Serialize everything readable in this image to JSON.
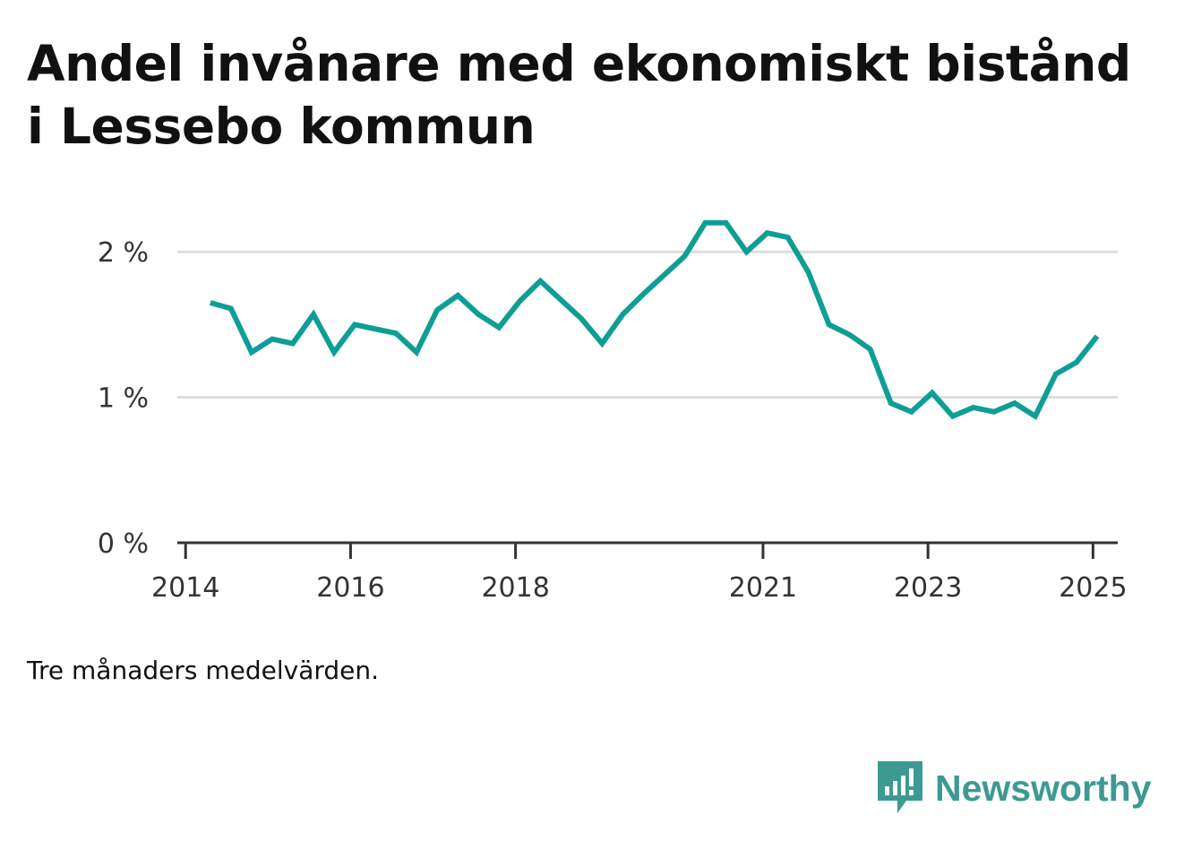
{
  "title": "Andel invånare med ekonomiskt bistånd i Lessebo kommun",
  "note": "Tre månaders medelvärden.",
  "brand": {
    "name": "Newsworthy",
    "icon": "newsworthy-logo-icon",
    "color": "#3d9a93"
  },
  "chart_data": {
    "type": "line",
    "title": "Andel invånare med ekonomiskt bistånd i Lessebo kommun",
    "xlabel": "",
    "ylabel": "",
    "ylim": [
      0,
      2.5
    ],
    "xlim": [
      2013.9,
      2025.3
    ],
    "grid": true,
    "legend": "none",
    "y_ticks": [
      {
        "value": 0,
        "label": "0 %"
      },
      {
        "value": 1,
        "label": "1 %"
      },
      {
        "value": 2,
        "label": "2 %"
      }
    ],
    "x_ticks": [
      {
        "value": 2014,
        "label": "2014"
      },
      {
        "value": 2016,
        "label": "2016"
      },
      {
        "value": 2018,
        "label": "2018"
      },
      {
        "value": 2021,
        "label": "2021"
      },
      {
        "value": 2023,
        "label": "2023"
      },
      {
        "value": 2025,
        "label": "2025"
      }
    ],
    "series": [
      {
        "color": "#0f9e95",
        "x": [
          2014.3,
          2014.55,
          2014.8,
          2015.05,
          2015.3,
          2015.55,
          2015.8,
          2016.05,
          2016.3,
          2016.55,
          2016.8,
          2017.05,
          2017.3,
          2017.55,
          2017.8,
          2018.05,
          2018.3,
          2018.55,
          2018.8,
          2019.05,
          2019.3,
          2019.55,
          2019.8,
          2020.05,
          2020.3,
          2020.55,
          2020.8,
          2021.05,
          2021.3,
          2021.55,
          2021.8,
          2022.05,
          2022.3,
          2022.55,
          2022.8,
          2023.05,
          2023.3,
          2023.55,
          2023.8,
          2024.05,
          2024.3,
          2024.55,
          2024.8,
          2025.05
        ],
        "values": [
          1.65,
          1.61,
          1.31,
          1.4,
          1.37,
          1.57,
          1.31,
          1.5,
          1.47,
          1.44,
          1.31,
          1.6,
          1.7,
          1.57,
          1.48,
          1.66,
          1.8,
          1.67,
          1.54,
          1.37,
          1.57,
          1.71,
          1.84,
          1.97,
          2.2,
          2.2,
          2.0,
          2.13,
          2.1,
          1.86,
          1.5,
          1.43,
          1.33,
          0.96,
          0.9,
          1.03,
          0.87,
          0.93,
          0.9,
          0.96,
          0.87,
          1.16,
          1.24,
          1.42
        ]
      }
    ]
  }
}
